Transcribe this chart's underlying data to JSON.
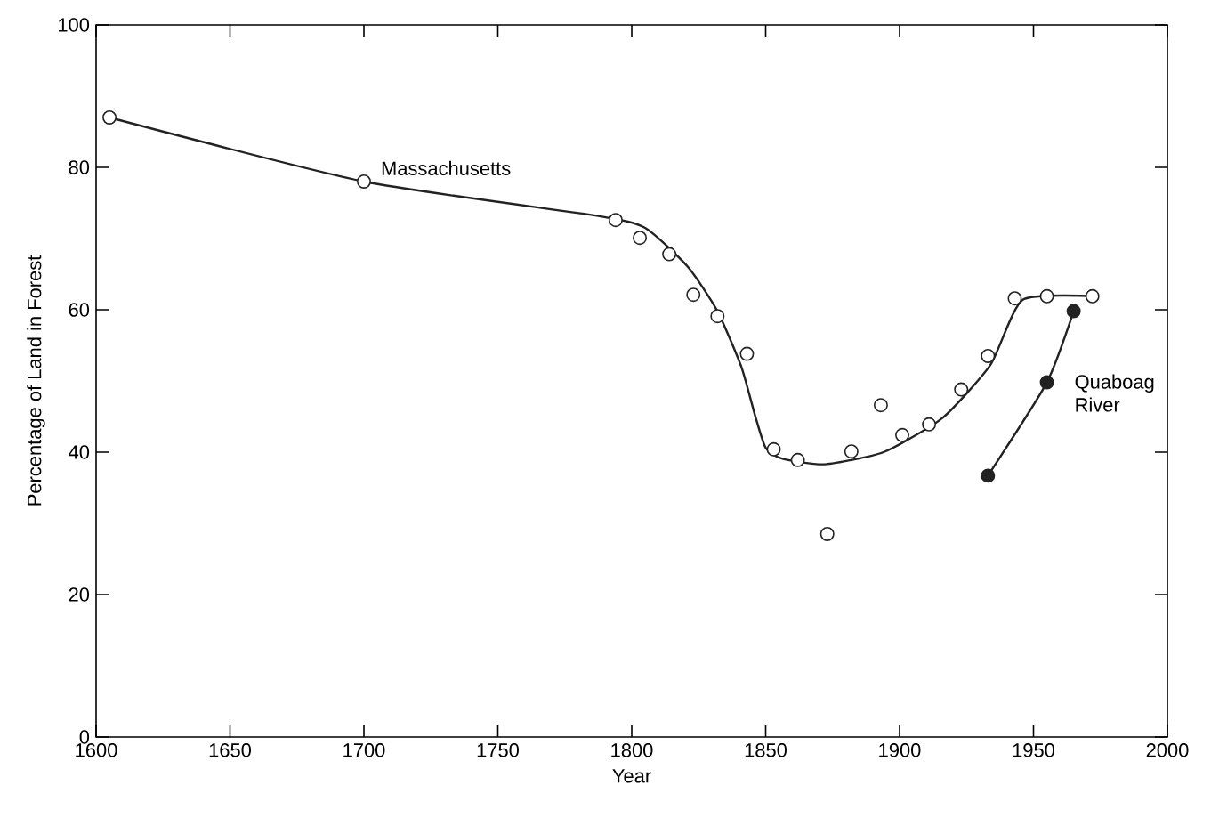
{
  "chart_data": {
    "type": "scatter",
    "xlabel": "Year",
    "ylabel": "Percentage of Land in Forest",
    "xlim": [
      1600,
      2000
    ],
    "ylim": [
      0,
      100
    ],
    "xticks": [
      1600,
      1650,
      1700,
      1750,
      1800,
      1850,
      1900,
      1950,
      2000
    ],
    "yticks": [
      0,
      20,
      40,
      60,
      80,
      100
    ],
    "grid": false,
    "series": [
      {
        "name": "Massachusetts",
        "marker": "circle",
        "color": "#222222",
        "x": [
          1605,
          1700,
          1794,
          1803,
          1814,
          1823,
          1832,
          1843,
          1853,
          1862,
          1873,
          1882,
          1893,
          1901,
          1911,
          1923,
          1933,
          1943,
          1955,
          1972
        ],
        "values": [
          87,
          78,
          72.6,
          70.1,
          67.8,
          62.1,
          59.1,
          53.8,
          40.4,
          38.9,
          28.5,
          40.1,
          46.6,
          42.4,
          43.9,
          48.8,
          53.5,
          61.6,
          61.9,
          61.9
        ]
      },
      {
        "type": "line",
        "marker": "none",
        "color": "#222222",
        "x": [
          1605,
          1700,
          1787,
          1805,
          1821,
          1832,
          1841,
          1846,
          1850,
          1856,
          1872,
          1894,
          1916,
          1934,
          1946,
          1973
        ],
        "values": [
          87,
          78,
          73.2,
          71.5,
          66,
          59.8,
          51.9,
          45.2,
          40.6,
          39.1,
          38.3,
          40,
          44.8,
          52.3,
          61.4,
          61.9
        ]
      },
      {
        "name": "Quaboag River",
        "type": "line",
        "marker": "circle",
        "color": "#222222",
        "x": [
          1933,
          1955,
          1965
        ],
        "values": [
          36.7,
          49.8,
          59.8
        ]
      }
    ]
  }
}
